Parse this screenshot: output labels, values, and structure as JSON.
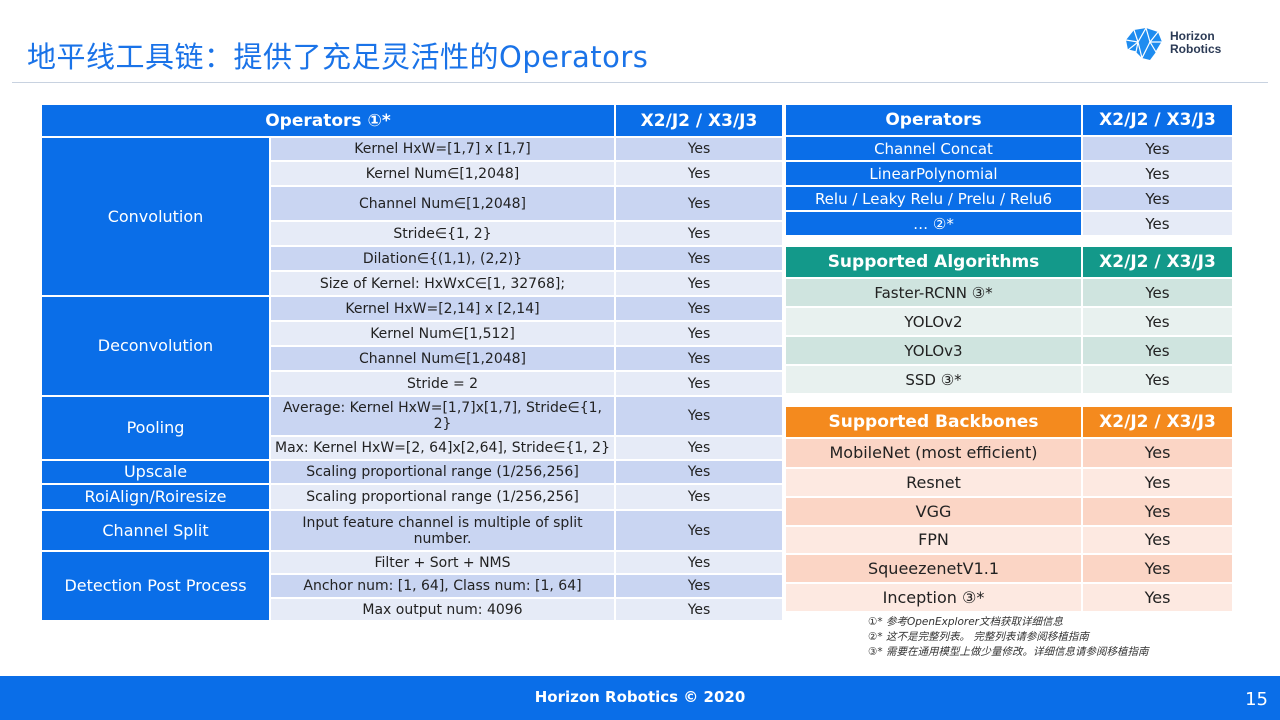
{
  "title": "地平线工具链：提供了充足灵活性的Operators",
  "logo": {
    "line1": "Horizon",
    "line2": "Robotics"
  },
  "main_table": {
    "header": [
      "Operators ①*",
      "X2/J2 / X3/J3"
    ],
    "groups": [
      {
        "name": "Convolution",
        "rows": [
          {
            "param": "Kernel HxW=[1,7] x [1,7]",
            "value": "Yes"
          },
          {
            "param": "Kernel Num∈[1,2048]",
            "value": "Yes"
          },
          {
            "param": "Channel Num∈[1,2048]",
            "value": "Yes"
          },
          {
            "param": "Stride∈{1, 2}",
            "value": "Yes"
          },
          {
            "param": "Dilation∈{(1,1), (2,2)}",
            "value": "Yes"
          },
          {
            "param": "Size of Kernel: HxWxC∈[1, 32768];",
            "value": "Yes"
          }
        ]
      },
      {
        "name": "Deconvolution",
        "rows": [
          {
            "param": "Kernel HxW=[2,14] x [2,14]",
            "value": "Yes"
          },
          {
            "param": "Kernel Num∈[1,512]",
            "value": "Yes"
          },
          {
            "param": "Channel Num∈[1,2048]",
            "value": "Yes"
          },
          {
            "param": "Stride = 2",
            "value": "Yes"
          }
        ]
      },
      {
        "name": "Pooling",
        "rows": [
          {
            "param": "Average: Kernel HxW=[1,7]x[1,7], Stride∈{1, 2}",
            "value": "Yes"
          },
          {
            "param": "Max: Kernel HxW=[2, 64]x[2,64], Stride∈{1, 2}",
            "value": "Yes"
          }
        ]
      },
      {
        "name": "Upscale",
        "rows": [
          {
            "param": "Scaling proportional range (1/256,256]",
            "value": "Yes"
          }
        ]
      },
      {
        "name": "RoiAlign/Roiresize",
        "rows": [
          {
            "param": "Scaling proportional range (1/256,256]",
            "value": "Yes"
          }
        ]
      },
      {
        "name": "Channel Split",
        "rows": [
          {
            "param": "Input feature channel is multiple of split number.",
            "value": "Yes"
          }
        ]
      },
      {
        "name": "Detection Post Process",
        "rows": [
          {
            "param": "Filter + Sort + NMS",
            "value": "Yes"
          },
          {
            "param": "Anchor num: [1, 64], Class num: [1, 64]",
            "value": "Yes"
          },
          {
            "param": "Max output num: 4096",
            "value": "Yes"
          }
        ]
      }
    ]
  },
  "ops_table": {
    "header": [
      "Operators",
      "X2/J2 / X3/J3"
    ],
    "rows": [
      {
        "name": "Channel Concat",
        "value": "Yes"
      },
      {
        "name": "LinearPolynomial",
        "value": "Yes"
      },
      {
        "name": "Relu / Leaky Relu / Prelu / Relu6",
        "value": "Yes"
      },
      {
        "name": "…  ②*",
        "value": "Yes"
      }
    ]
  },
  "algo_table": {
    "header": [
      "Supported Algorithms",
      "X2/J2 / X3/J3"
    ],
    "rows": [
      {
        "name": "Faster-RCNN  ③*",
        "value": "Yes"
      },
      {
        "name": "YOLOv2",
        "value": "Yes"
      },
      {
        "name": "YOLOv3",
        "value": "Yes"
      },
      {
        "name": "SSD  ③*",
        "value": "Yes"
      }
    ]
  },
  "backbone_table": {
    "header": [
      "Supported Backbones",
      "X2/J2 / X3/J3"
    ],
    "rows": [
      {
        "name": "MobileNet (most efficient)",
        "value": "Yes"
      },
      {
        "name": "Resnet",
        "value": "Yes"
      },
      {
        "name": "VGG",
        "value": "Yes"
      },
      {
        "name": "FPN",
        "value": "Yes"
      },
      {
        "name": "SqueezenetV1.1",
        "value": "Yes"
      },
      {
        "name": "Inception  ③*",
        "value": "Yes"
      }
    ]
  },
  "notes": [
    "①*  参考OpenExplorer文档获取详细信息",
    "②*  这不是完整列表。 完整列表请参阅移植指南",
    "③*  需要在通用模型上做少量修改。详细信息请参阅移植指南"
  ],
  "footer": {
    "text": "Horizon Robotics © 2020",
    "page": "15"
  },
  "colors": {
    "blue": "#0a6ee8",
    "teal": "#13998a",
    "orange": "#f48a1e"
  }
}
